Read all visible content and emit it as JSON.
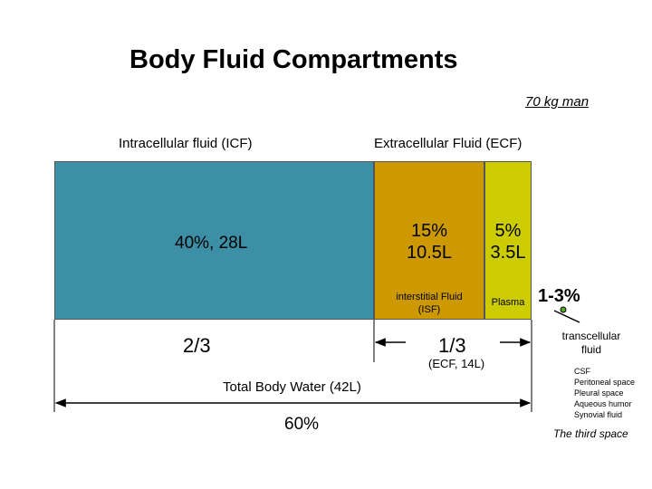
{
  "title": "Body Fluid Compartments",
  "subtitle": "70 kg man",
  "icf": {
    "header": "Intracellular fluid (ICF)",
    "value": "40%, 28L",
    "color": "#3d8fa6",
    "fraction": "2/3"
  },
  "ecf": {
    "header": "Extracellular Fluid (ECF)",
    "fraction": "1/3",
    "fraction_note": "(ECF, 14L)"
  },
  "isf": {
    "percent": "15%",
    "volume": "10.5L",
    "label_line1": "interstitial Fluid",
    "label_line2": "(ISF)",
    "color": "#cc9900"
  },
  "plasma": {
    "percent": "5%",
    "volume": "3.5L",
    "label": "Plasma",
    "color": "#cccc00"
  },
  "transcellular": {
    "percent": "1-3%",
    "label_line1": "transcellular",
    "label_line2": "fluid",
    "color": "#55aa22",
    "list": [
      "CSF",
      "Peritoneal space",
      "Pleural space",
      "Aqueous humor",
      "Synovial fluid"
    ],
    "footer": "The third space"
  },
  "total": {
    "label": "Total Body Water (42L)",
    "percent": "60%"
  }
}
